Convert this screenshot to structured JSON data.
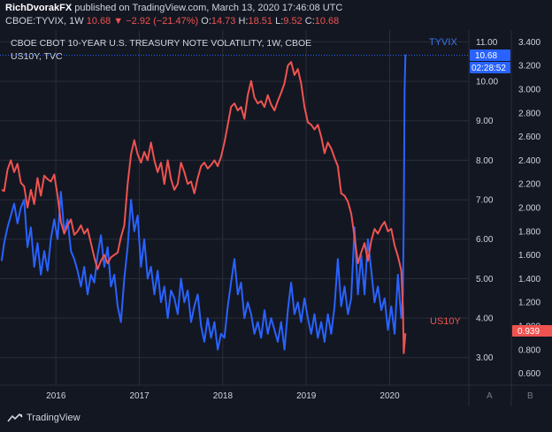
{
  "header": {
    "author": "RichDvorakFX",
    "published": " published on TradingView.com, March 13, 2020 17:46:08 UTC",
    "symbol": "CBOE:TYVIX, 1W",
    "last": "10.68",
    "change": "−2.92 (−21.47%)",
    "ohlc": {
      "o_label": "O:",
      "o": "14.73",
      "h_label": "H:",
      "h": "18.51",
      "l_label": "L:",
      "l": "9.52",
      "c_label": "C:",
      "c": "10.68"
    }
  },
  "chart_data": {
    "type": "line",
    "title": "CBOE CBOT 10-YEAR U.S. TREASURY NOTE VOLATILITY, 1W, CBOE",
    "subtitle": "US10Y, TVC",
    "x_labels": [
      "2016",
      "2017",
      "2018",
      "2019",
      "2020"
    ],
    "x_range": [
      2015.33,
      2020.95
    ],
    "left_axis": {
      "range": [
        2.3,
        11.3
      ],
      "ticks": [
        "11.00",
        "10.00",
        "9.00",
        "8.00",
        "7.00",
        "6.00",
        "5.00",
        "4.00",
        "3.00"
      ]
    },
    "right_axis": {
      "range": [
        0.5,
        3.5
      ],
      "ticks": [
        "3.400",
        "3.200",
        "3.000",
        "2.800",
        "2.600",
        "2.400",
        "2.200",
        "2.000",
        "1.800",
        "1.600",
        "1.400",
        "1.200",
        "1.000",
        "0.800",
        "0.600"
      ]
    },
    "series": [
      {
        "name": "TYVIX",
        "color": "#2962ff",
        "axis": "left",
        "last_value": "10.68",
        "countdown": "02:28:52",
        "points": [
          [
            2015.35,
            5.45
          ],
          [
            2015.38,
            5.9
          ],
          [
            2015.42,
            6.3
          ],
          [
            2015.46,
            6.6
          ],
          [
            2015.5,
            6.9
          ],
          [
            2015.54,
            6.4
          ],
          [
            2015.58,
            6.8
          ],
          [
            2015.62,
            7.0
          ],
          [
            2015.66,
            5.8
          ],
          [
            2015.7,
            6.3
          ],
          [
            2015.74,
            5.3
          ],
          [
            2015.78,
            5.9
          ],
          [
            2015.82,
            5.1
          ],
          [
            2015.86,
            5.7
          ],
          [
            2015.9,
            5.2
          ],
          [
            2015.94,
            6.0
          ],
          [
            2015.98,
            6.5
          ],
          [
            2016.02,
            6.0
          ],
          [
            2016.06,
            7.2
          ],
          [
            2016.1,
            6.2
          ],
          [
            2016.14,
            6.5
          ],
          [
            2016.18,
            5.7
          ],
          [
            2016.22,
            5.5
          ],
          [
            2016.26,
            5.2
          ],
          [
            2016.3,
            4.8
          ],
          [
            2016.34,
            5.3
          ],
          [
            2016.38,
            4.6
          ],
          [
            2016.42,
            5.1
          ],
          [
            2016.46,
            4.9
          ],
          [
            2016.5,
            5.6
          ],
          [
            2016.54,
            6.1
          ],
          [
            2016.58,
            5.3
          ],
          [
            2016.62,
            5.8
          ],
          [
            2016.66,
            4.8
          ],
          [
            2016.7,
            5.1
          ],
          [
            2016.74,
            4.3
          ],
          [
            2016.78,
            3.9
          ],
          [
            2016.82,
            5.0
          ],
          [
            2016.86,
            5.8
          ],
          [
            2016.9,
            7.0
          ],
          [
            2016.94,
            6.2
          ],
          [
            2016.98,
            6.6
          ],
          [
            2017.02,
            5.3
          ],
          [
            2017.06,
            6.0
          ],
          [
            2017.1,
            5.0
          ],
          [
            2017.14,
            5.3
          ],
          [
            2017.18,
            4.6
          ],
          [
            2017.22,
            5.2
          ],
          [
            2017.26,
            4.4
          ],
          [
            2017.3,
            4.8
          ],
          [
            2017.34,
            4.0
          ],
          [
            2017.38,
            4.7
          ],
          [
            2017.42,
            4.5
          ],
          [
            2017.46,
            4.1
          ],
          [
            2017.5,
            5.0
          ],
          [
            2017.54,
            4.4
          ],
          [
            2017.58,
            4.7
          ],
          [
            2017.62,
            3.9
          ],
          [
            2017.66,
            4.3
          ],
          [
            2017.7,
            4.6
          ],
          [
            2017.74,
            3.8
          ],
          [
            2017.78,
            3.4
          ],
          [
            2017.82,
            4.0
          ],
          [
            2017.86,
            3.5
          ],
          [
            2017.9,
            3.9
          ],
          [
            2017.94,
            3.2
          ],
          [
            2017.98,
            3.6
          ],
          [
            2018.02,
            3.5
          ],
          [
            2018.06,
            4.3
          ],
          [
            2018.1,
            4.9
          ],
          [
            2018.14,
            5.5
          ],
          [
            2018.18,
            4.6
          ],
          [
            2018.22,
            4.9
          ],
          [
            2018.26,
            4.0
          ],
          [
            2018.3,
            4.4
          ],
          [
            2018.34,
            4.1
          ],
          [
            2018.38,
            3.6
          ],
          [
            2018.42,
            3.9
          ],
          [
            2018.46,
            3.5
          ],
          [
            2018.5,
            4.2
          ],
          [
            2018.54,
            3.6
          ],
          [
            2018.58,
            4.0
          ],
          [
            2018.62,
            3.7
          ],
          [
            2018.66,
            3.4
          ],
          [
            2018.7,
            3.9
          ],
          [
            2018.74,
            3.2
          ],
          [
            2018.78,
            4.2
          ],
          [
            2018.82,
            4.9
          ],
          [
            2018.86,
            4.1
          ],
          [
            2018.9,
            4.4
          ],
          [
            2018.94,
            3.9
          ],
          [
            2018.98,
            4.5
          ],
          [
            2019.02,
            4.0
          ],
          [
            2019.06,
            3.6
          ],
          [
            2019.1,
            4.1
          ],
          [
            2019.14,
            3.5
          ],
          [
            2019.18,
            3.9
          ],
          [
            2019.22,
            3.4
          ],
          [
            2019.26,
            4.1
          ],
          [
            2019.3,
            3.6
          ],
          [
            2019.34,
            4.3
          ],
          [
            2019.38,
            5.5
          ],
          [
            2019.42,
            4.3
          ],
          [
            2019.46,
            4.8
          ],
          [
            2019.5,
            4.1
          ],
          [
            2019.54,
            4.5
          ],
          [
            2019.58,
            6.3
          ],
          [
            2019.62,
            4.6
          ],
          [
            2019.66,
            5.6
          ],
          [
            2019.7,
            4.6
          ],
          [
            2019.74,
            6.0
          ],
          [
            2019.78,
            5.2
          ],
          [
            2019.82,
            4.4
          ],
          [
            2019.86,
            4.8
          ],
          [
            2019.9,
            4.2
          ],
          [
            2019.94,
            4.5
          ],
          [
            2019.98,
            3.7
          ],
          [
            2020.02,
            4.3
          ],
          [
            2020.06,
            3.6
          ],
          [
            2020.1,
            5.1
          ],
          [
            2020.14,
            4.0
          ],
          [
            2020.16,
            4.6
          ],
          [
            2020.17,
            6.5
          ],
          [
            2020.18,
            9.8
          ],
          [
            2020.19,
            10.68
          ]
        ]
      },
      {
        "name": "US10Y",
        "color": "#ef5350",
        "axis": "right",
        "last_value": "0.939",
        "points": [
          [
            2015.35,
            2.15
          ],
          [
            2015.38,
            2.14
          ],
          [
            2015.42,
            2.32
          ],
          [
            2015.46,
            2.4
          ],
          [
            2015.5,
            2.3
          ],
          [
            2015.54,
            2.37
          ],
          [
            2015.58,
            2.21
          ],
          [
            2015.62,
            2.18
          ],
          [
            2015.66,
            2.0
          ],
          [
            2015.7,
            2.15
          ],
          [
            2015.74,
            2.03
          ],
          [
            2015.78,
            2.25
          ],
          [
            2015.82,
            2.1
          ],
          [
            2015.86,
            2.27
          ],
          [
            2015.9,
            2.24
          ],
          [
            2015.94,
            2.22
          ],
          [
            2015.98,
            2.28
          ],
          [
            2016.02,
            2.1
          ],
          [
            2016.06,
            1.88
          ],
          [
            2016.1,
            1.78
          ],
          [
            2016.14,
            1.85
          ],
          [
            2016.18,
            1.9
          ],
          [
            2016.22,
            1.77
          ],
          [
            2016.26,
            1.8
          ],
          [
            2016.3,
            1.85
          ],
          [
            2016.34,
            1.78
          ],
          [
            2016.38,
            1.82
          ],
          [
            2016.42,
            1.7
          ],
          [
            2016.46,
            1.58
          ],
          [
            2016.5,
            1.48
          ],
          [
            2016.54,
            1.55
          ],
          [
            2016.58,
            1.6
          ],
          [
            2016.62,
            1.53
          ],
          [
            2016.66,
            1.58
          ],
          [
            2016.7,
            1.6
          ],
          [
            2016.74,
            1.62
          ],
          [
            2016.78,
            1.75
          ],
          [
            2016.82,
            1.85
          ],
          [
            2016.86,
            2.2
          ],
          [
            2016.9,
            2.45
          ],
          [
            2016.94,
            2.57
          ],
          [
            2016.98,
            2.45
          ],
          [
            2017.02,
            2.38
          ],
          [
            2017.06,
            2.47
          ],
          [
            2017.1,
            2.4
          ],
          [
            2017.14,
            2.55
          ],
          [
            2017.18,
            2.4
          ],
          [
            2017.22,
            2.3
          ],
          [
            2017.26,
            2.38
          ],
          [
            2017.3,
            2.2
          ],
          [
            2017.34,
            2.4
          ],
          [
            2017.38,
            2.24
          ],
          [
            2017.42,
            2.15
          ],
          [
            2017.46,
            2.2
          ],
          [
            2017.5,
            2.38
          ],
          [
            2017.54,
            2.3
          ],
          [
            2017.58,
            2.2
          ],
          [
            2017.62,
            2.22
          ],
          [
            2017.66,
            2.12
          ],
          [
            2017.7,
            2.25
          ],
          [
            2017.74,
            2.35
          ],
          [
            2017.78,
            2.38
          ],
          [
            2017.82,
            2.33
          ],
          [
            2017.86,
            2.36
          ],
          [
            2017.9,
            2.4
          ],
          [
            2017.94,
            2.35
          ],
          [
            2017.98,
            2.43
          ],
          [
            2018.02,
            2.55
          ],
          [
            2018.06,
            2.7
          ],
          [
            2018.1,
            2.85
          ],
          [
            2018.14,
            2.88
          ],
          [
            2018.18,
            2.82
          ],
          [
            2018.22,
            2.85
          ],
          [
            2018.26,
            2.75
          ],
          [
            2018.3,
            2.95
          ],
          [
            2018.34,
            3.07
          ],
          [
            2018.38,
            2.93
          ],
          [
            2018.42,
            2.88
          ],
          [
            2018.46,
            2.9
          ],
          [
            2018.5,
            2.85
          ],
          [
            2018.54,
            2.95
          ],
          [
            2018.58,
            2.87
          ],
          [
            2018.62,
            2.82
          ],
          [
            2018.66,
            2.9
          ],
          [
            2018.7,
            2.97
          ],
          [
            2018.74,
            3.05
          ],
          [
            2018.78,
            3.2
          ],
          [
            2018.82,
            3.23
          ],
          [
            2018.86,
            3.12
          ],
          [
            2018.9,
            3.17
          ],
          [
            2018.94,
            3.05
          ],
          [
            2018.98,
            2.85
          ],
          [
            2019.02,
            2.72
          ],
          [
            2019.06,
            2.7
          ],
          [
            2019.1,
            2.66
          ],
          [
            2019.14,
            2.7
          ],
          [
            2019.18,
            2.6
          ],
          [
            2019.22,
            2.46
          ],
          [
            2019.26,
            2.55
          ],
          [
            2019.3,
            2.5
          ],
          [
            2019.34,
            2.42
          ],
          [
            2019.38,
            2.35
          ],
          [
            2019.42,
            2.12
          ],
          [
            2019.46,
            2.1
          ],
          [
            2019.5,
            2.05
          ],
          [
            2019.54,
            1.95
          ],
          [
            2019.58,
            1.75
          ],
          [
            2019.62,
            1.53
          ],
          [
            2019.66,
            1.62
          ],
          [
            2019.7,
            1.7
          ],
          [
            2019.74,
            1.55
          ],
          [
            2019.78,
            1.72
          ],
          [
            2019.82,
            1.82
          ],
          [
            2019.86,
            1.78
          ],
          [
            2019.9,
            1.84
          ],
          [
            2019.94,
            1.88
          ],
          [
            2019.98,
            1.8
          ],
          [
            2020.02,
            1.82
          ],
          [
            2020.06,
            1.68
          ],
          [
            2020.1,
            1.59
          ],
          [
            2020.14,
            1.47
          ],
          [
            2020.16,
            1.15
          ],
          [
            2020.17,
            0.77
          ],
          [
            2020.19,
            0.939
          ]
        ]
      }
    ],
    "axis_buttons": [
      "A",
      "B"
    ]
  },
  "footer": {
    "brand": "TradingView"
  },
  "colors": {
    "bg": "#131722",
    "grid": "#2a2e39",
    "text": "#d1d4dc",
    "blue": "#2962ff",
    "red": "#ef5350"
  }
}
